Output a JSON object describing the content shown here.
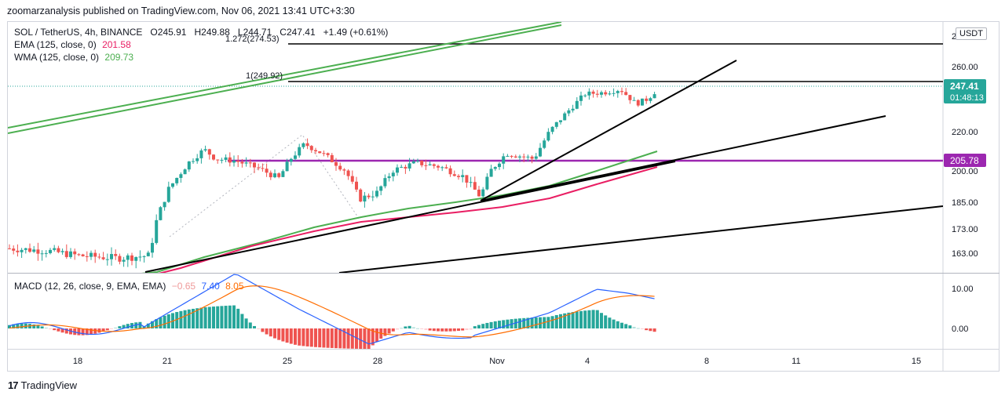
{
  "publisher": "zoomarzanalysis published on TradingView.com, Nov 06, 2021 13:41 UTC+3:30",
  "brand": {
    "logo": "17",
    "name": "TradingView"
  },
  "legend": {
    "symbol": "SOL / TetherUS, 4h, BINANCE",
    "open_label": "O",
    "open": "245.91",
    "high_label": "H",
    "high": "249.88",
    "low_label": "L",
    "low": "244.71",
    "close_label": "C",
    "close": "247.41",
    "change": "+1.49 (+0.61%)",
    "ema_label": "EMA (125, close, 0)",
    "ema_value": "201.58",
    "wma_label": "WMA (125, close, 0)",
    "wma_value": "209.73"
  },
  "macd_legend": {
    "label": "MACD (12, 26, close, 9, EMA, EMA)",
    "hist": "−0.65",
    "macd": "7.40",
    "signal": "8.05"
  },
  "currency": "USDT",
  "price_tag": {
    "price": "247.41",
    "countdown": "01:48:13"
  },
  "level_tag": "205.78",
  "colors": {
    "up": "#26a69a",
    "down": "#ef5350",
    "ema": "#e91e63",
    "wma": "#4caf50",
    "level": "#9c27b0",
    "macd": "#2962ff",
    "signal": "#ff6d00",
    "trend": "#000000"
  },
  "chart_data": [
    {
      "type": "candlestick",
      "title": "SOL / TetherUS, 4h, BINANCE",
      "x_ticks": [
        "18",
        "21",
        "25",
        "28",
        "Nov",
        "4",
        "8",
        "11",
        "15"
      ],
      "y_ticks": [
        163.0,
        173.0,
        185.0,
        200.0,
        205.78,
        220.0,
        247.41,
        260.0
      ],
      "y_scale": "log",
      "ylim": [
        158,
        282
      ],
      "levels": [
        {
          "label": "1.272(274.53)",
          "value": 274.53
        },
        {
          "label": "1(249.92)",
          "value": 249.92
        },
        {
          "label": "",
          "value": 205.78
        }
      ],
      "candles_sample": [
        {
          "date": "Oct 21",
          "close": 190
        },
        {
          "date": "Oct 22",
          "close": 212
        },
        {
          "date": "Oct 25",
          "close": 214
        },
        {
          "date": "Oct 27",
          "close": 186
        },
        {
          "date": "Oct 31",
          "close": 193
        },
        {
          "date": "Nov 2",
          "close": 214
        },
        {
          "date": "Nov 4",
          "close": 246
        },
        {
          "date": "Nov 6",
          "close": 247.41
        }
      ],
      "series": [
        {
          "name": "EMA (125, close, 0)",
          "last": 201.58
        },
        {
          "name": "WMA (125, close, 0)",
          "last": 209.73
        }
      ]
    },
    {
      "type": "bar",
      "title": "MACD (12, 26, close, 9, EMA, EMA)",
      "y_ticks": [
        0.0,
        10.0
      ],
      "series": [
        {
          "name": "Histogram",
          "last": -0.65
        },
        {
          "name": "MACD",
          "last": 7.4
        },
        {
          "name": "Signal",
          "last": 8.05
        }
      ]
    }
  ]
}
